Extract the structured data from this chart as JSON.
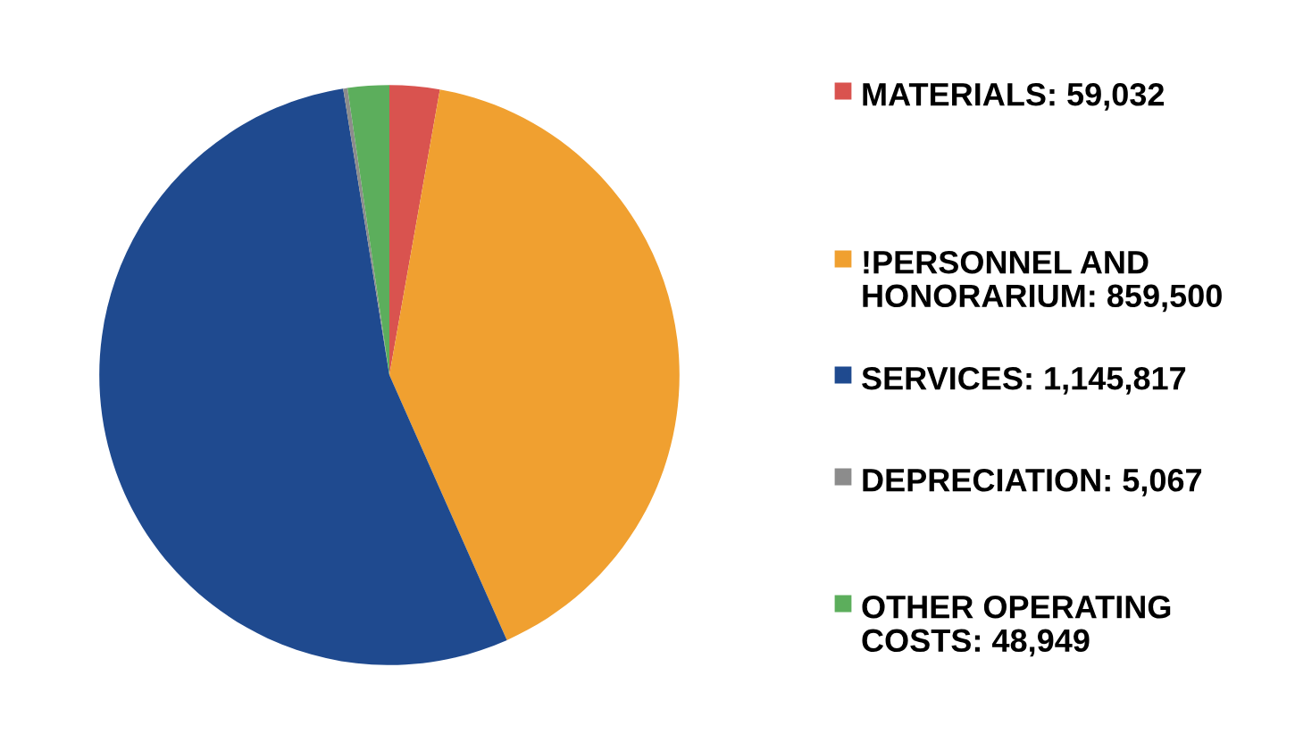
{
  "chart_data": {
    "type": "pie",
    "categories": [
      "MATERIALS: 59,032",
      "!PERSONNEL AND HONORARIUM: 859,500",
      "SERVICES: 1,145,817",
      "DEPRECIATION: 5,067",
      "OTHER OPERATING COSTS: 48,949"
    ],
    "values": [
      59032,
      859500,
      1145817,
      5067,
      48949
    ],
    "colors": [
      "#d9534f",
      "#f0a030",
      "#1f4a8f",
      "#8c8c8c",
      "#5cae5c"
    ],
    "legend": "right"
  }
}
